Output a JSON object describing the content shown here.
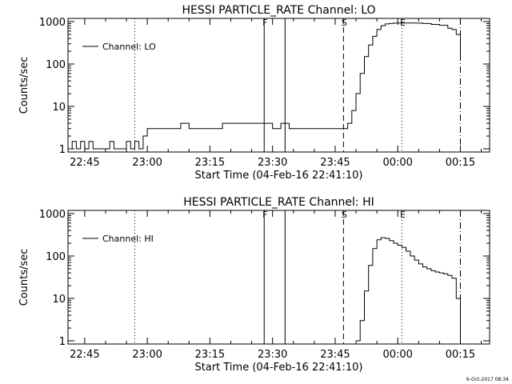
{
  "chart_data": [
    {
      "type": "line",
      "title": "HESSI PARTICLE_RATE Channel: LO",
      "xlabel": "Start Time (04-Feb-16 22:41:10)",
      "ylabel": "Counts/sec",
      "y_scale": "log",
      "ylim": [
        1,
        1000
      ],
      "xlim": [
        "22:41",
        "00:22"
      ],
      "x_ticks": [
        "22:45",
        "23:00",
        "23:15",
        "23:30",
        "23:45",
        "00:00",
        "00:15"
      ],
      "y_ticks": [
        "1",
        "10",
        "100",
        "1000"
      ],
      "legend": {
        "entries": [
          "Channel: LO"
        ],
        "placement": "top-left"
      },
      "grid": false,
      "markers": [
        {
          "label": "",
          "time": "22:57",
          "style": "dotted"
        },
        {
          "label": "F",
          "time": "23:28",
          "style": "solid"
        },
        {
          "label": "",
          "time": "23:33",
          "style": "solid"
        },
        {
          "label": "S",
          "time": "23:47",
          "style": "dashed"
        },
        {
          "label": "E",
          "time": "00:01",
          "style": "dotted"
        },
        {
          "label": "",
          "time": "00:15",
          "style": "dash-dot"
        }
      ],
      "series": [
        {
          "name": "Channel: LO",
          "x": [
            "22:41",
            "22:42",
            "22:43",
            "22:44",
            "22:45",
            "22:46",
            "22:47",
            "22:48",
            "22:49",
            "22:50",
            "22:51",
            "22:52",
            "22:53",
            "22:54",
            "22:55",
            "22:56",
            "22:57",
            "22:58",
            "22:59",
            "23:00",
            "23:02",
            "23:04",
            "23:06",
            "23:08",
            "23:10",
            "23:12",
            "23:14",
            "23:16",
            "23:18",
            "23:20",
            "23:22",
            "23:24",
            "23:26",
            "23:28",
            "23:30",
            "23:32",
            "23:34",
            "23:36",
            "23:38",
            "23:40",
            "23:42",
            "23:44",
            "23:46",
            "23:47",
            "23:48",
            "23:49",
            "23:50",
            "23:51",
            "23:52",
            "23:53",
            "23:54",
            "23:55",
            "23:56",
            "23:57",
            "23:58",
            "23:59",
            "00:00",
            "00:02",
            "00:04",
            "00:06",
            "00:08",
            "00:10",
            "00:12",
            "00:13",
            "00:14",
            "00:15"
          ],
          "values": [
            1,
            1.5,
            1,
            1.5,
            1,
            1.5,
            1,
            1,
            1,
            1,
            1.5,
            1,
            1,
            1,
            1.5,
            1,
            1.5,
            1,
            2,
            3,
            3,
            3,
            3,
            4,
            3,
            3,
            3,
            3,
            4,
            4,
            4,
            4,
            4,
            4,
            3,
            4,
            3,
            3,
            3,
            3,
            3,
            3,
            3,
            3,
            4,
            8,
            20,
            60,
            150,
            280,
            450,
            650,
            800,
            880,
            900,
            920,
            930,
            930,
            920,
            900,
            860,
            820,
            700,
            650,
            500,
            120
          ]
        }
      ]
    },
    {
      "type": "line",
      "title": "HESSI PARTICLE_RATE Channel: HI",
      "xlabel": "Start Time (04-Feb-16 22:41:10)",
      "ylabel": "Counts/sec",
      "y_scale": "log",
      "ylim": [
        1,
        1000
      ],
      "xlim": [
        "22:41",
        "00:22"
      ],
      "x_ticks": [
        "22:45",
        "23:00",
        "23:15",
        "23:30",
        "23:45",
        "00:00",
        "00:15"
      ],
      "y_ticks": [
        "1",
        "10",
        "100",
        "1000"
      ],
      "legend": {
        "entries": [
          "Channel: HI"
        ],
        "placement": "top-left"
      },
      "grid": false,
      "markers": [
        {
          "label": "",
          "time": "22:57",
          "style": "dotted"
        },
        {
          "label": "F",
          "time": "23:28",
          "style": "solid"
        },
        {
          "label": "",
          "time": "23:33",
          "style": "solid"
        },
        {
          "label": "S",
          "time": "23:47",
          "style": "dashed"
        },
        {
          "label": "E",
          "time": "00:01",
          "style": "dotted"
        },
        {
          "label": "",
          "time": "00:15",
          "style": "dash-dot"
        }
      ],
      "series": [
        {
          "name": "Channel: HI",
          "x": [
            "23:50",
            "23:51",
            "23:52",
            "23:53",
            "23:54",
            "23:55",
            "23:56",
            "23:57",
            "23:58",
            "23:59",
            "00:00",
            "00:01",
            "00:02",
            "00:03",
            "00:04",
            "00:05",
            "00:06",
            "00:07",
            "00:08",
            "00:09",
            "00:10",
            "00:11",
            "00:12",
            "00:13",
            "00:14",
            "00:15"
          ],
          "values": [
            1,
            3,
            15,
            60,
            150,
            240,
            270,
            260,
            230,
            200,
            180,
            160,
            130,
            100,
            80,
            65,
            55,
            50,
            45,
            42,
            40,
            38,
            35,
            30,
            10,
            1
          ]
        }
      ]
    }
  ],
  "footer": {
    "timestamp": "6-Oct-2017 08:34"
  }
}
